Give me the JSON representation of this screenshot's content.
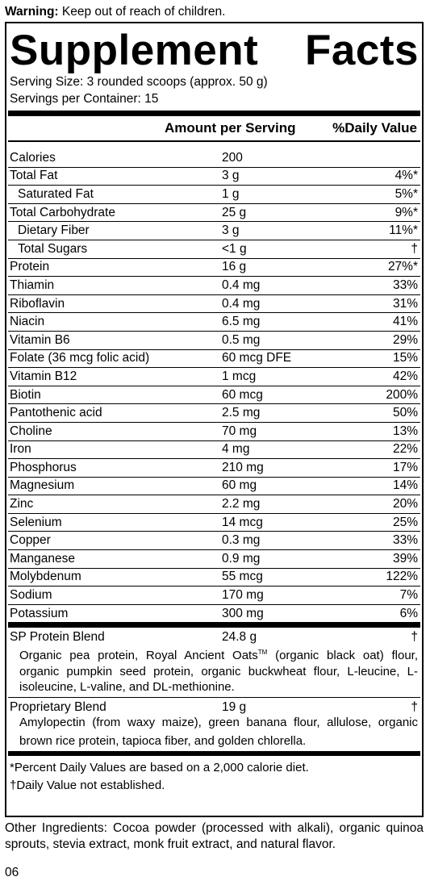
{
  "warning": {
    "label": "Warning:",
    "text": " Keep out of reach of children."
  },
  "title": {
    "left": "Supplement",
    "right": "Facts"
  },
  "serving": {
    "size": "Serving Size: 3 rounded scoops (approx. 50 g)",
    "per_container": "Servings per Container: 15"
  },
  "header": {
    "amount": "Amount per Serving",
    "dv": "%Daily Value"
  },
  "nutrients": [
    {
      "name": "Calories",
      "amount": "200",
      "dv": "",
      "indent": false
    },
    {
      "name": "Total Fat",
      "amount": "3 g",
      "dv": "4%*",
      "indent": false
    },
    {
      "name": "Saturated Fat",
      "amount": "1 g",
      "dv": "5%*",
      "indent": true
    },
    {
      "name": "Total Carbohydrate",
      "amount": "25 g",
      "dv": "9%*",
      "indent": false
    },
    {
      "name": "Dietary Fiber",
      "amount": "3 g",
      "dv": "11%*",
      "indent": true
    },
    {
      "name": "Total Sugars",
      "amount": "<1 g",
      "dv": "†",
      "indent": true
    },
    {
      "name": "Protein",
      "amount": "16 g",
      "dv": "27%*",
      "indent": false
    },
    {
      "name": "Thiamin",
      "amount": "0.4 mg",
      "dv": "33%",
      "indent": false
    },
    {
      "name": "Riboflavin",
      "amount": "0.4 mg",
      "dv": "31%",
      "indent": false
    },
    {
      "name": "Niacin",
      "amount": "6.5 mg",
      "dv": "41%",
      "indent": false
    },
    {
      "name": "Vitamin B6",
      "amount": "0.5 mg",
      "dv": "29%",
      "indent": false
    },
    {
      "name": "Folate (36 mcg folic acid)",
      "amount": "60 mcg DFE",
      "dv": "15%",
      "indent": false
    },
    {
      "name": "Vitamin B12",
      "amount": "1 mcg",
      "dv": "42%",
      "indent": false
    },
    {
      "name": "Biotin",
      "amount": "60 mcg",
      "dv": "200%",
      "indent": false
    },
    {
      "name": "Pantothenic acid",
      "amount": "2.5 mg",
      "dv": "50%",
      "indent": false
    },
    {
      "name": "Choline",
      "amount": "70 mg",
      "dv": "13%",
      "indent": false
    },
    {
      "name": "Iron",
      "amount": "4 mg",
      "dv": "22%",
      "indent": false
    },
    {
      "name": "Phosphorus",
      "amount": "210 mg",
      "dv": "17%",
      "indent": false
    },
    {
      "name": "Magnesium",
      "amount": "60 mg",
      "dv": "14%",
      "indent": false
    },
    {
      "name": "Zinc",
      "amount": "2.2 mg",
      "dv": "20%",
      "indent": false
    },
    {
      "name": "Selenium",
      "amount": "14 mcg",
      "dv": "25%",
      "indent": false
    },
    {
      "name": "Copper",
      "amount": "0.3 mg",
      "dv": "33%",
      "indent": false
    },
    {
      "name": "Manganese",
      "amount": "0.9 mg",
      "dv": "39%",
      "indent": false
    },
    {
      "name": "Molybdenum",
      "amount": "55 mcg",
      "dv": "122%",
      "indent": false
    },
    {
      "name": "Sodium",
      "amount": "170 mg",
      "dv": "7%",
      "indent": false
    },
    {
      "name": "Potassium",
      "amount": "300 mg",
      "dv": "6%",
      "indent": false
    }
  ],
  "blends": [
    {
      "name": "SP Protein Blend",
      "amount": "24.8 g",
      "dv": "†",
      "desc_a": "Organic pea protein, Royal Ancient Oats",
      "tm": "TM",
      "desc_b": " (organic black oat) flour, organic pumpkin seed protein, organic buckwheat flour, L-leucine, L-isoleucine, L-valine, and DL-methionine."
    },
    {
      "name": "Proprietary Blend",
      "amount": "19 g",
      "dv": "†",
      "desc_a": "Amylopectin (from waxy maize), green banana flour, allulose, organic brown rice protein, tapioca fiber, and golden chlorella.",
      "tm": "",
      "desc_b": ""
    }
  ],
  "footnotes": [
    "*Percent Daily Values are based on a 2,000 calorie diet.",
    "†Daily Value not established."
  ],
  "other_ingredients": "Other Ingredients: Cocoa powder (processed with alkali), organic quinoa sprouts, stevia extract, monk fruit extract, and natural flavor.",
  "code": "06"
}
